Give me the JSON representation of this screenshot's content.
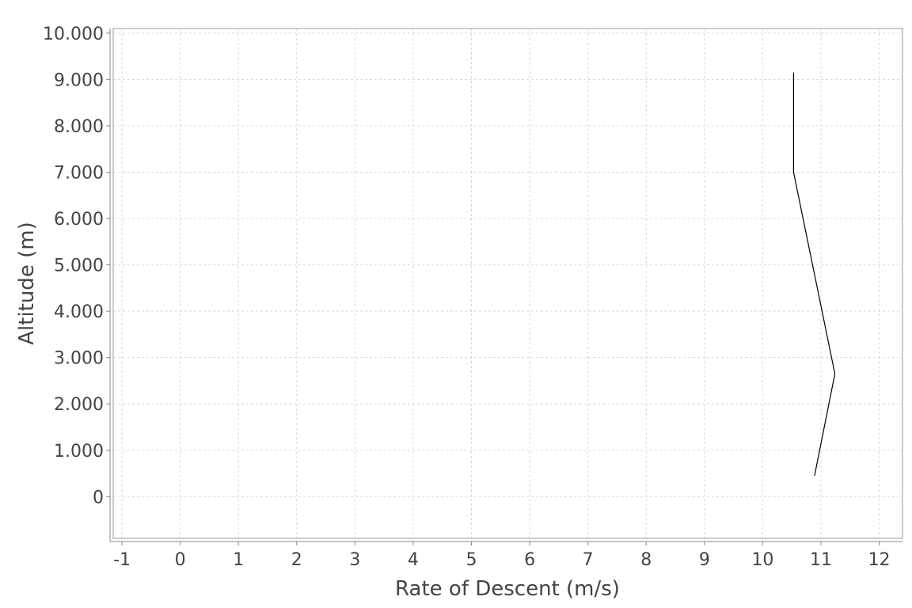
{
  "chart_data": {
    "type": "line",
    "title": "",
    "xlabel": "Rate of Descent (m/s)",
    "ylabel": "Altitude (m)",
    "xlim": [
      -1.15,
      12.4
    ],
    "ylim": [
      -900,
      10100
    ],
    "x_ticks": [
      -1,
      0,
      1,
      2,
      3,
      4,
      5,
      6,
      7,
      8,
      9,
      10,
      11,
      12
    ],
    "x_tick_labels": [
      "-1",
      "0",
      "1",
      "2",
      "3",
      "4",
      "5",
      "6",
      "7",
      "8",
      "9",
      "10",
      "11",
      "12"
    ],
    "y_ticks": [
      0,
      1000,
      2000,
      3000,
      4000,
      5000,
      6000,
      7000,
      8000,
      9000,
      10000
    ],
    "y_tick_labels": [
      "0",
      "1.000",
      "2.000",
      "3.000",
      "4.000",
      "5.000",
      "6.000",
      "7.000",
      "8.000",
      "9.000",
      "10.000"
    ],
    "grid": true,
    "legend": "none",
    "series": [
      {
        "color": "#000000",
        "x": [
          10.53,
          10.53,
          11.24,
          10.89
        ],
        "y": [
          9150,
          7000,
          2650,
          450
        ]
      }
    ]
  }
}
